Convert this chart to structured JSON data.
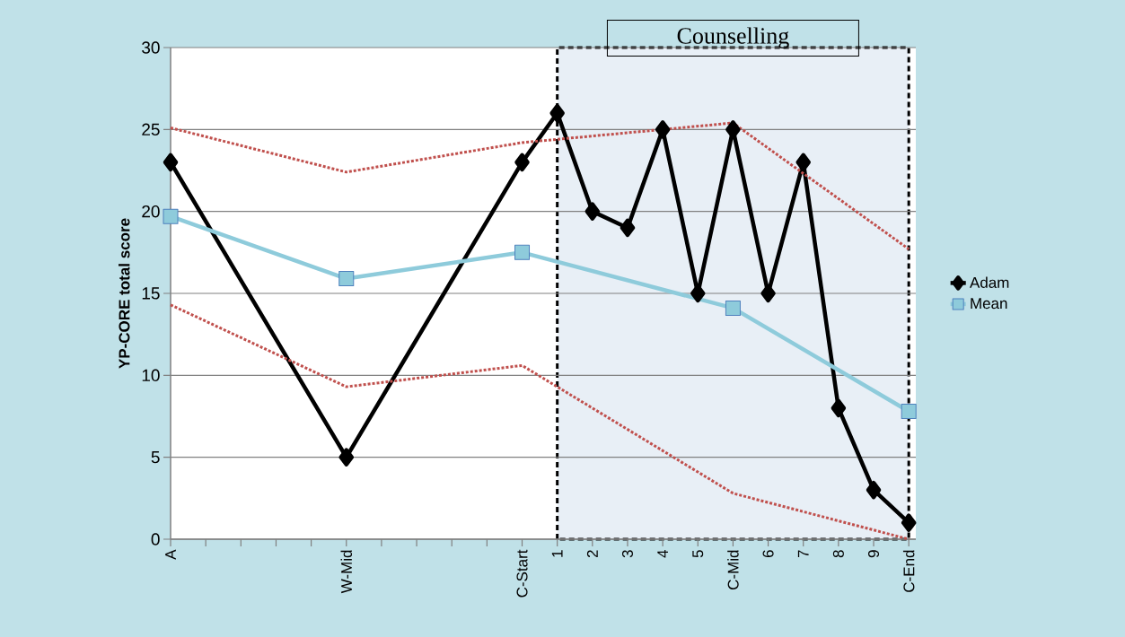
{
  "chart_data": {
    "type": "line",
    "ylabel": "YP-CORE total score",
    "categories": [
      "A",
      null,
      null,
      null,
      null,
      "W-Mid",
      null,
      null,
      null,
      null,
      "C-Start",
      "1",
      "2",
      "3",
      "4",
      "5",
      "C-Mid",
      "6",
      "7",
      "8",
      "9",
      "C-End"
    ],
    "series": [
      {
        "name": "Adam",
        "color": "#000000",
        "marker": "diamond",
        "line_style": "solid",
        "values": [
          23,
          null,
          null,
          null,
          null,
          5,
          null,
          null,
          null,
          null,
          23,
          26,
          20,
          19,
          25,
          15,
          25,
          15,
          23,
          8,
          3,
          1
        ]
      },
      {
        "name": "Mean",
        "color": "#8ecbdb",
        "marker": "square",
        "line_style": "solid",
        "values": [
          19.7,
          null,
          null,
          null,
          null,
          15.9,
          null,
          null,
          null,
          null,
          17.5,
          null,
          null,
          null,
          null,
          null,
          14.1,
          null,
          null,
          null,
          null,
          7.8
        ]
      },
      {
        "color": "#c0504d",
        "marker": "none",
        "line_style": "dotted",
        "values": [
          25.1,
          null,
          null,
          null,
          null,
          22.4,
          null,
          null,
          null,
          null,
          24.2,
          null,
          null,
          null,
          null,
          null,
          25.4,
          null,
          null,
          null,
          null,
          17.7
        ]
      },
      {
        "color": "#c0504d",
        "marker": "none",
        "line_style": "dotted",
        "values": [
          14.3,
          null,
          null,
          null,
          null,
          9.3,
          null,
          null,
          null,
          null,
          10.6,
          null,
          null,
          null,
          null,
          null,
          2.8,
          null,
          null,
          null,
          null,
          0
        ]
      }
    ],
    "ylim": [
      0,
      30
    ],
    "yticks": [
      0,
      5,
      10,
      15,
      20,
      25,
      30
    ],
    "grid": "y",
    "legend": "right",
    "bands": [
      {
        "axis": "x",
        "from": "1",
        "to": "C-End",
        "label": "Counselling",
        "color": "#e8eff6"
      }
    ]
  }
}
